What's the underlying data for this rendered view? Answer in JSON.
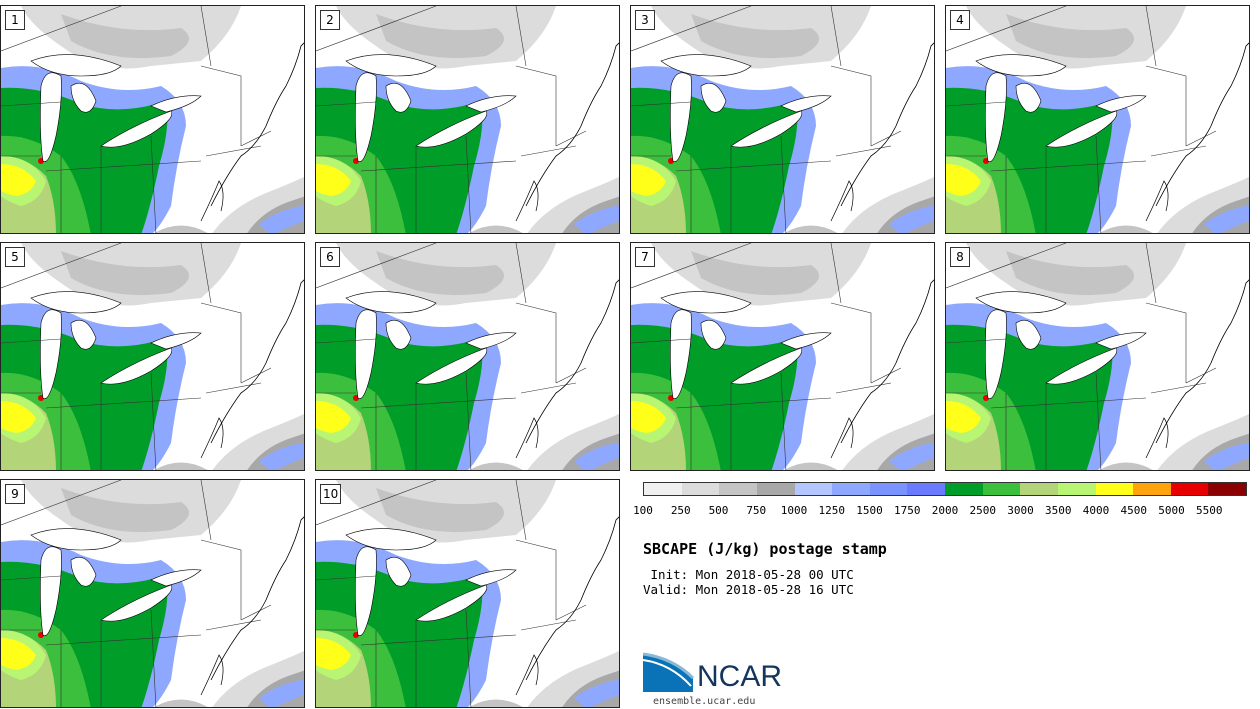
{
  "panels": [
    {
      "label": "1"
    },
    {
      "label": "2"
    },
    {
      "label": "3"
    },
    {
      "label": "4"
    },
    {
      "label": "5"
    },
    {
      "label": "6"
    },
    {
      "label": "7"
    },
    {
      "label": "8"
    },
    {
      "label": "9"
    },
    {
      "label": "10"
    }
  ],
  "legend": {
    "colors": [
      "#f0f0f0",
      "#dcdcdc",
      "#c4c4c4",
      "#a8a8a8",
      "#b3c6ff",
      "#8fa8ff",
      "#7a93ff",
      "#6a7bff",
      "#009e28",
      "#3cbf3c",
      "#b4d47a",
      "#b8f573",
      "#ffff1a",
      "#ffa30d",
      "#e60000",
      "#8b0000"
    ],
    "ticks": [
      "100",
      "250",
      "500",
      "750",
      "1000",
      "1250",
      "1500",
      "1750",
      "2000",
      "2500",
      "3000",
      "3500",
      "4000",
      "4500",
      "5000",
      "5500"
    ]
  },
  "title": "SBCAPE (J/kg) postage stamp",
  "init": " Init: Mon 2018-05-28 00 UTC",
  "valid": "Valid: Mon 2018-05-28 16 UTC",
  "logo": {
    "text": "NCAR",
    "url": "ensemble.ucar.edu"
  }
}
